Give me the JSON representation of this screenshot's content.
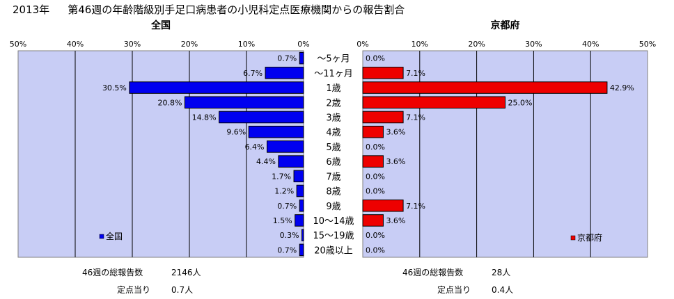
{
  "header": {
    "year": "2013年",
    "title": "第46週の年齢階級別手足口病患者の小児科定点医療機関からの報告割合"
  },
  "colors": {
    "plot_bg": "#c8cdf5",
    "national": "#0000f0",
    "kyoto": "#ee0000"
  },
  "chart_data": [
    {
      "type": "bar",
      "orientation": "horizontal",
      "title": "全国",
      "categories": [
        "～5ヶ月",
        "～11ヶ月",
        "1歳",
        "2歳",
        "3歳",
        "4歳",
        "5歳",
        "6歳",
        "7歳",
        "8歳",
        "9歳",
        "10～14歳",
        "15～19歳",
        "20歳以上"
      ],
      "series": [
        {
          "name": "全国",
          "values": [
            0.7,
            6.7,
            30.5,
            20.8,
            14.8,
            9.6,
            6.4,
            4.4,
            1.7,
            1.2,
            0.7,
            1.5,
            0.3,
            0.7
          ]
        }
      ],
      "data_labels": [
        "0.7%",
        "6.7%",
        "30.5%",
        "20.8%",
        "14.8%",
        "9.6%",
        "6.4%",
        "4.4%",
        "1.7%",
        "1.2%",
        "0.7%",
        "1.5%",
        "0.3%",
        "0.7%"
      ],
      "xlim": [
        0,
        50
      ],
      "x_reversed": true,
      "x_ticks": [
        "50%",
        "40%",
        "30%",
        "20%",
        "10%",
        "0%"
      ],
      "grid": true,
      "legend": "bottom-left"
    },
    {
      "type": "bar",
      "orientation": "horizontal",
      "title": "京都府",
      "categories": [
        "～5ヶ月",
        "～11ヶ月",
        "1歳",
        "2歳",
        "3歳",
        "4歳",
        "5歳",
        "6歳",
        "7歳",
        "8歳",
        "9歳",
        "10～14歳",
        "15～19歳",
        "20歳以上"
      ],
      "series": [
        {
          "name": "京都府",
          "values": [
            0.0,
            7.1,
            42.9,
            25.0,
            7.1,
            3.6,
            0.0,
            3.6,
            0.0,
            0.0,
            7.1,
            3.6,
            0.0,
            0.0
          ]
        }
      ],
      "data_labels": [
        "0.0%",
        "7.1%",
        "42.9%",
        "25.0%",
        "7.1%",
        "3.6%",
        "0.0%",
        "3.6%",
        "0.0%",
        "0.0%",
        "7.1%",
        "3.6%",
        "0.0%",
        "0.0%"
      ],
      "xlim": [
        0,
        50
      ],
      "x_reversed": false,
      "x_ticks": [
        "0%",
        "10%",
        "20%",
        "30%",
        "40%",
        "50%"
      ],
      "grid": true,
      "legend": "bottom-right"
    }
  ],
  "footer": {
    "national": {
      "total_label": "46週の総報告数",
      "total_value": "2146人",
      "per_label": "定点当り",
      "per_value": "0.7人"
    },
    "kyoto": {
      "total_label": "46週の総報告数",
      "total_value": "28人",
      "per_label": "定点当り",
      "per_value": "0.4人"
    }
  }
}
